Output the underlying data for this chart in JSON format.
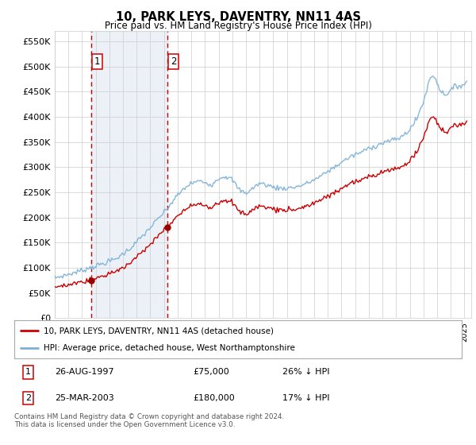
{
  "title": "10, PARK LEYS, DAVENTRY, NN11 4AS",
  "subtitle": "Price paid vs. HM Land Registry's House Price Index (HPI)",
  "legend_line1": "10, PARK LEYS, DAVENTRY, NN11 4AS (detached house)",
  "legend_line2": "HPI: Average price, detached house, West Northamptonshire",
  "footnote": "Contains HM Land Registry data © Crown copyright and database right 2024.\nThis data is licensed under the Open Government Licence v3.0.",
  "sale1_label": "1",
  "sale1_date": "26-AUG-1997",
  "sale1_price": "£75,000",
  "sale1_hpi": "26% ↓ HPI",
  "sale2_label": "2",
  "sale2_date": "25-MAR-2003",
  "sale2_price": "£180,000",
  "sale2_hpi": "17% ↓ HPI",
  "sale1_x": 1997.65,
  "sale1_y": 75000,
  "sale2_x": 2003.23,
  "sale2_y": 180000,
  "xmin": 1995.0,
  "xmax": 2025.5,
  "ymin": 0,
  "ymax": 570000,
  "yticks": [
    0,
    50000,
    100000,
    150000,
    200000,
    250000,
    300000,
    350000,
    400000,
    450000,
    500000,
    550000
  ],
  "ytick_labels": [
    "£0",
    "£50K",
    "£100K",
    "£150K",
    "£200K",
    "£250K",
    "£300K",
    "£350K",
    "£400K",
    "£450K",
    "£500K",
    "£550K"
  ],
  "hpi_color": "#7ab0d8",
  "price_color": "#cc0000",
  "sale_dot_color": "#990000",
  "vline_color": "#cc0000",
  "bg_shade_color": "#dce6f1",
  "grid_color": "#cccccc",
  "box_color": "#cc0000",
  "title_fontsize": 10.5,
  "subtitle_fontsize": 8.5
}
